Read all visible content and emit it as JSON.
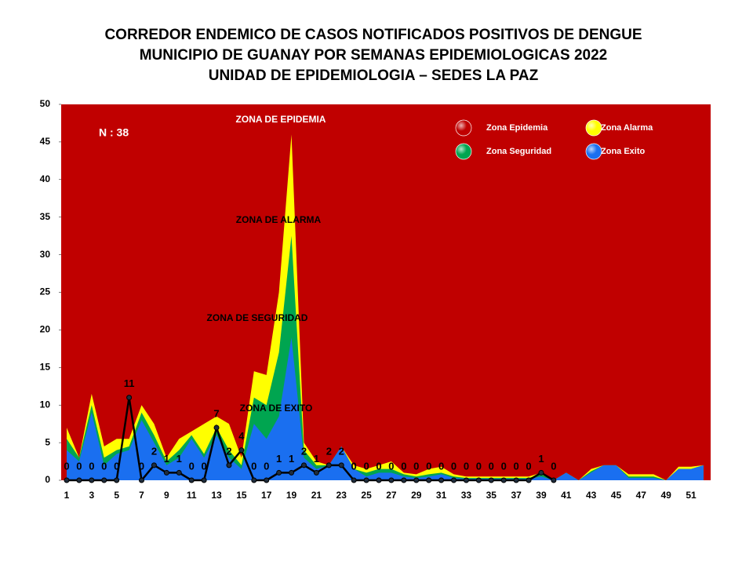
{
  "chart_data": {
    "type": "area",
    "title": [
      "CORREDOR ENDEMICO DE CASOS NOTIFICADOS POSITIVOS DE DENGUE",
      "MUNICIPIO DE GUANAY POR SEMANAS EPIDEMIOLOGICAS 2022",
      "UNIDAD DE EPIDEMIOLOGIA – SEDES LA PAZ"
    ],
    "note": "N : 38",
    "annotations": [
      "ZONA DE EPIDEMIA",
      "ZONA DE ALARMA",
      "ZONA DE  SEGURIDAD",
      "ZONA DE  EXITO"
    ],
    "categories": [
      1,
      null,
      3,
      null,
      5,
      null,
      7,
      null,
      9,
      null,
      11,
      null,
      13,
      null,
      15,
      null,
      17,
      null,
      19,
      null,
      21,
      null,
      23,
      null,
      25,
      null,
      27,
      null,
      29,
      null,
      31,
      null,
      33,
      null,
      35,
      null,
      37,
      null,
      39,
      null,
      41,
      null,
      43,
      null,
      45,
      null,
      47,
      null,
      49,
      null,
      51,
      null
    ],
    "ylim": [
      0,
      50
    ],
    "yticks": [
      0,
      5,
      10,
      15,
      20,
      25,
      30,
      35,
      40,
      45,
      50
    ],
    "grid": false,
    "legend": "top-right",
    "series": [
      {
        "name": "Zona Epidemia",
        "color": "#c00000"
      },
      {
        "name": "Zona Alarma",
        "color": "#ffff00",
        "values": [
          7,
          3,
          11.5,
          4.5,
          5.5,
          5.5,
          10,
          7.5,
          3,
          5.5,
          6.5,
          7.5,
          8.5,
          7.5,
          3,
          14.5,
          14,
          25,
          46,
          5,
          2.5,
          2,
          4.5,
          2,
          1.5,
          2,
          2.5,
          1,
          0.8,
          1.5,
          1.8,
          0.8,
          0.5,
          0.5,
          0.5,
          0.5,
          0.5,
          0.5,
          1,
          0,
          1,
          0,
          1.5,
          2,
          2,
          0.8,
          0.8,
          0.8,
          0,
          1.8,
          1.8,
          2
        ]
      },
      {
        "name": "Zona Seguridad",
        "color": "#00a550",
        "values": [
          5.5,
          3,
          10,
          3,
          4,
          4.5,
          9,
          6,
          2.5,
          4,
          6,
          3.5,
          7,
          4,
          2,
          11,
          10,
          17,
          32.5,
          4,
          2,
          2,
          4.5,
          1.5,
          1,
          1.5,
          1.5,
          0.8,
          0.5,
          0.8,
          1,
          0.5,
          0.3,
          0.3,
          0.3,
          0.3,
          0.3,
          0.3,
          0.8,
          0,
          1,
          0,
          1.2,
          2,
          2,
          0.5,
          0.5,
          0.5,
          0,
          1.5,
          1.5,
          2
        ]
      },
      {
        "name": "Zona Exito",
        "color": "#1a6ff0",
        "values": [
          4,
          2.5,
          9,
          2,
          3.5,
          4,
          8,
          5,
          2,
          3,
          5.5,
          3,
          6,
          3,
          1.5,
          7.5,
          5.5,
          8.5,
          19,
          3,
          1.5,
          2,
          4.5,
          1.5,
          0.5,
          1,
          1,
          0.5,
          0.3,
          0.5,
          0.8,
          0.3,
          0.2,
          0.2,
          0.2,
          0.2,
          0.2,
          0.2,
          0.5,
          0,
          1,
          0,
          1,
          2,
          2,
          0.3,
          0.3,
          0.3,
          0,
          1.5,
          1.5,
          2
        ]
      }
    ],
    "cases": {
      "color": "#000000",
      "values": [
        0,
        0,
        0,
        0,
        0,
        11,
        0,
        2,
        1,
        1,
        0,
        0,
        7,
        2,
        4,
        0,
        0,
        1,
        1,
        2,
        1,
        2,
        2,
        0,
        0,
        0,
        0,
        0,
        0,
        0,
        0,
        0,
        0,
        0,
        0,
        0,
        0,
        0,
        1,
        0,
        null,
        null,
        null,
        null,
        null,
        null,
        null,
        null,
        null,
        null,
        null,
        null
      ]
    }
  }
}
